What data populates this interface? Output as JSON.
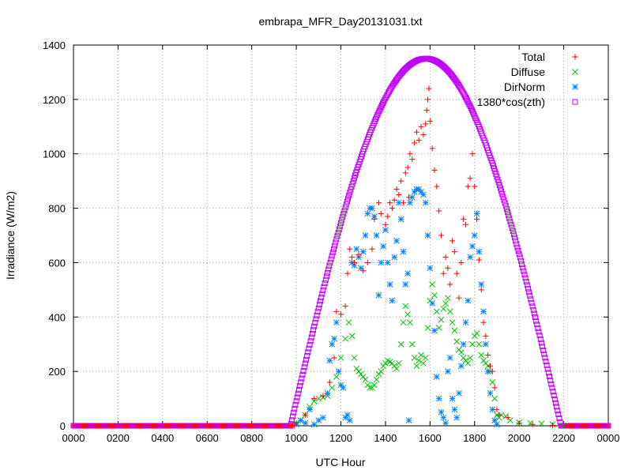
{
  "chart_data": {
    "type": "scatter",
    "title": "embrapa_MFR_Day20131031.txt",
    "xlabel": "UTC Hour",
    "ylabel": "Irradiance (W/m2)",
    "xlim": [
      0,
      2400
    ],
    "ylim": [
      0,
      1400
    ],
    "x_ticks": [
      "0000",
      "0200",
      "0400",
      "0600",
      "0800",
      "1000",
      "1200",
      "1400",
      "1600",
      "1800",
      "2000",
      "2200",
      "0000"
    ],
    "y_ticks": [
      "0",
      "200",
      "400",
      "600",
      "800",
      "1000",
      "1200",
      "1400"
    ],
    "grid": true,
    "legend_position": "top-right",
    "series": [
      {
        "name": "Total",
        "marker": "plus",
        "color": "#ff0000",
        "points": [
          [
            1000,
            10
          ],
          [
            1040,
            40
          ],
          [
            1080,
            100
          ],
          [
            1120,
            110
          ],
          [
            1150,
            160
          ],
          [
            1170,
            250
          ],
          [
            1180,
            420
          ],
          [
            1200,
            410
          ],
          [
            1220,
            440
          ],
          [
            1230,
            560
          ],
          [
            1240,
            650
          ],
          [
            1250,
            620
          ],
          [
            1260,
            600
          ],
          [
            1280,
            630
          ],
          [
            1300,
            570
          ],
          [
            1320,
            600
          ],
          [
            1340,
            650
          ],
          [
            1350,
            760
          ],
          [
            1370,
            820
          ],
          [
            1380,
            780
          ],
          [
            1400,
            740
          ],
          [
            1410,
            770
          ],
          [
            1420,
            820
          ],
          [
            1430,
            800
          ],
          [
            1440,
            830
          ],
          [
            1450,
            870
          ],
          [
            1460,
            850
          ],
          [
            1470,
            900
          ],
          [
            1480,
            820
          ],
          [
            1490,
            930
          ],
          [
            1500,
            950
          ],
          [
            1505,
            840
          ],
          [
            1510,
            1000
          ],
          [
            1520,
            980
          ],
          [
            1530,
            1040
          ],
          [
            1540,
            1080
          ],
          [
            1550,
            1050
          ],
          [
            1560,
            1100
          ],
          [
            1570,
            1070
          ],
          [
            1580,
            1110
          ],
          [
            1585,
            1160
          ],
          [
            1590,
            1200
          ],
          [
            1595,
            1240
          ],
          [
            1600,
            1120
          ],
          [
            1610,
            1020
          ],
          [
            1620,
            940
          ],
          [
            1630,
            880
          ],
          [
            1640,
            790
          ],
          [
            1650,
            700
          ],
          [
            1660,
            560
          ],
          [
            1670,
            620
          ],
          [
            1680,
            580
          ],
          [
            1690,
            520
          ],
          [
            1700,
            680
          ],
          [
            1710,
            640
          ],
          [
            1720,
            560
          ],
          [
            1730,
            470
          ],
          [
            1740,
            600
          ],
          [
            1750,
            760
          ],
          [
            1760,
            740
          ],
          [
            1770,
            880
          ],
          [
            1780,
            910
          ],
          [
            1790,
            1000
          ],
          [
            1800,
            880
          ],
          [
            1810,
            760
          ],
          [
            1820,
            610
          ],
          [
            1830,
            500
          ],
          [
            1840,
            380
          ],
          [
            1850,
            330
          ],
          [
            1860,
            260
          ],
          [
            1870,
            220
          ],
          [
            1880,
            200
          ],
          [
            1890,
            140
          ],
          [
            1900,
            60
          ],
          [
            1910,
            40
          ],
          [
            1950,
            30
          ],
          [
            2000,
            10
          ],
          [
            2060,
            5
          ],
          [
            2150,
            2
          ],
          [
            2200,
            0
          ]
        ]
      },
      {
        "name": "Diffuse",
        "marker": "cross",
        "color": "#00c000",
        "points": [
          [
            1000,
            10
          ],
          [
            1020,
            20
          ],
          [
            1040,
            40
          ],
          [
            1060,
            70
          ],
          [
            1080,
            90
          ],
          [
            1100,
            100
          ],
          [
            1120,
            105
          ],
          [
            1140,
            110
          ],
          [
            1160,
            140
          ],
          [
            1180,
            180
          ],
          [
            1200,
            250
          ],
          [
            1220,
            320
          ],
          [
            1235,
            380
          ],
          [
            1250,
            330
          ],
          [
            1260,
            250
          ],
          [
            1270,
            210
          ],
          [
            1280,
            200
          ],
          [
            1290,
            190
          ],
          [
            1300,
            180
          ],
          [
            1310,
            170
          ],
          [
            1320,
            150
          ],
          [
            1330,
            140
          ],
          [
            1340,
            140
          ],
          [
            1350,
            150
          ],
          [
            1360,
            170
          ],
          [
            1370,
            190
          ],
          [
            1380,
            200
          ],
          [
            1390,
            220
          ],
          [
            1400,
            230
          ],
          [
            1410,
            240
          ],
          [
            1420,
            235
          ],
          [
            1430,
            230
          ],
          [
            1440,
            220
          ],
          [
            1450,
            210
          ],
          [
            1460,
            230
          ],
          [
            1470,
            300
          ],
          [
            1480,
            380
          ],
          [
            1490,
            440
          ],
          [
            1500,
            410
          ],
          [
            1510,
            380
          ],
          [
            1520,
            300
          ],
          [
            1530,
            250
          ],
          [
            1540,
            220
          ],
          [
            1550,
            240
          ],
          [
            1560,
            260
          ],
          [
            1570,
            230
          ],
          [
            1580,
            250
          ],
          [
            1590,
            360
          ],
          [
            1600,
            460
          ],
          [
            1610,
            520
          ],
          [
            1620,
            480
          ],
          [
            1630,
            420
          ],
          [
            1640,
            360
          ],
          [
            1650,
            390
          ],
          [
            1660,
            430
          ],
          [
            1670,
            450
          ],
          [
            1680,
            470
          ],
          [
            1690,
            420
          ],
          [
            1700,
            380
          ],
          [
            1710,
            350
          ],
          [
            1720,
            310
          ],
          [
            1730,
            280
          ],
          [
            1740,
            270
          ],
          [
            1750,
            250
          ],
          [
            1760,
            240
          ],
          [
            1770,
            230
          ],
          [
            1780,
            250
          ],
          [
            1790,
            300
          ],
          [
            1800,
            330
          ],
          [
            1810,
            340
          ],
          [
            1820,
            300
          ],
          [
            1830,
            260
          ],
          [
            1840,
            240
          ],
          [
            1850,
            230
          ],
          [
            1860,
            220
          ],
          [
            1870,
            200
          ],
          [
            1880,
            160
          ],
          [
            1890,
            100
          ],
          [
            1900,
            40
          ],
          [
            1910,
            30
          ],
          [
            1920,
            40
          ],
          [
            1940,
            35
          ],
          [
            1960,
            20
          ],
          [
            2000,
            12
          ],
          [
            2050,
            10
          ],
          [
            2100,
            8
          ],
          [
            2150,
            5
          ],
          [
            2200,
            0
          ]
        ]
      },
      {
        "name": "DirNorm",
        "marker": "star",
        "color": "#0080ff",
        "points": [
          [
            1000,
            5
          ],
          [
            1020,
            20
          ],
          [
            1040,
            10
          ],
          [
            1060,
            60
          ],
          [
            1080,
            5
          ],
          [
            1100,
            20
          ],
          [
            1120,
            30
          ],
          [
            1140,
            120
          ],
          [
            1150,
            240
          ],
          [
            1160,
            300
          ],
          [
            1170,
            320
          ],
          [
            1180,
            380
          ],
          [
            1190,
            200
          ],
          [
            1200,
            150
          ],
          [
            1210,
            140
          ],
          [
            1220,
            30
          ],
          [
            1230,
            40
          ],
          [
            1240,
            20
          ],
          [
            1250,
            600
          ],
          [
            1260,
            590
          ],
          [
            1270,
            650
          ],
          [
            1280,
            620
          ],
          [
            1290,
            580
          ],
          [
            1300,
            640
          ],
          [
            1310,
            700
          ],
          [
            1320,
            780
          ],
          [
            1330,
            800
          ],
          [
            1340,
            800
          ],
          [
            1350,
            770
          ],
          [
            1360,
            700
          ],
          [
            1370,
            480
          ],
          [
            1380,
            600
          ],
          [
            1390,
            660
          ],
          [
            1400,
            720
          ],
          [
            1410,
            600
          ],
          [
            1420,
            520
          ],
          [
            1430,
            460
          ],
          [
            1440,
            620
          ],
          [
            1450,
            680
          ],
          [
            1460,
            820
          ],
          [
            1470,
            760
          ],
          [
            1480,
            640
          ],
          [
            1490,
            520
          ],
          [
            1500,
            560
          ],
          [
            1505,
            20
          ],
          [
            1510,
            820
          ],
          [
            1520,
            840
          ],
          [
            1530,
            860
          ],
          [
            1540,
            870
          ],
          [
            1550,
            870
          ],
          [
            1560,
            860
          ],
          [
            1570,
            850
          ],
          [
            1580,
            820
          ],
          [
            1590,
            700
          ],
          [
            1600,
            580
          ],
          [
            1610,
            450
          ],
          [
            1620,
            350
          ],
          [
            1630,
            180
          ],
          [
            1640,
            100
          ],
          [
            1650,
            50
          ],
          [
            1660,
            30
          ],
          [
            1670,
            10
          ],
          [
            1680,
            200
          ],
          [
            1690,
            250
          ],
          [
            1700,
            100
          ],
          [
            1710,
            60
          ],
          [
            1720,
            30
          ],
          [
            1730,
            120
          ],
          [
            1740,
            220
          ],
          [
            1750,
            300
          ],
          [
            1760,
            380
          ],
          [
            1770,
            460
          ],
          [
            1780,
            620
          ],
          [
            1790,
            660
          ],
          [
            1800,
            700
          ],
          [
            1810,
            780
          ],
          [
            1820,
            640
          ],
          [
            1830,
            520
          ],
          [
            1840,
            420
          ],
          [
            1850,
            300
          ],
          [
            1860,
            200
          ],
          [
            1870,
            120
          ],
          [
            1880,
            60
          ],
          [
            1890,
            20
          ],
          [
            1900,
            5
          ]
        ]
      },
      {
        "name": "1380*cos(zth)",
        "marker": "square",
        "color": "#c000ff",
        "function": {
          "amplitude": 1350,
          "sunrise": 974,
          "sunset": 2188
        }
      }
    ]
  }
}
